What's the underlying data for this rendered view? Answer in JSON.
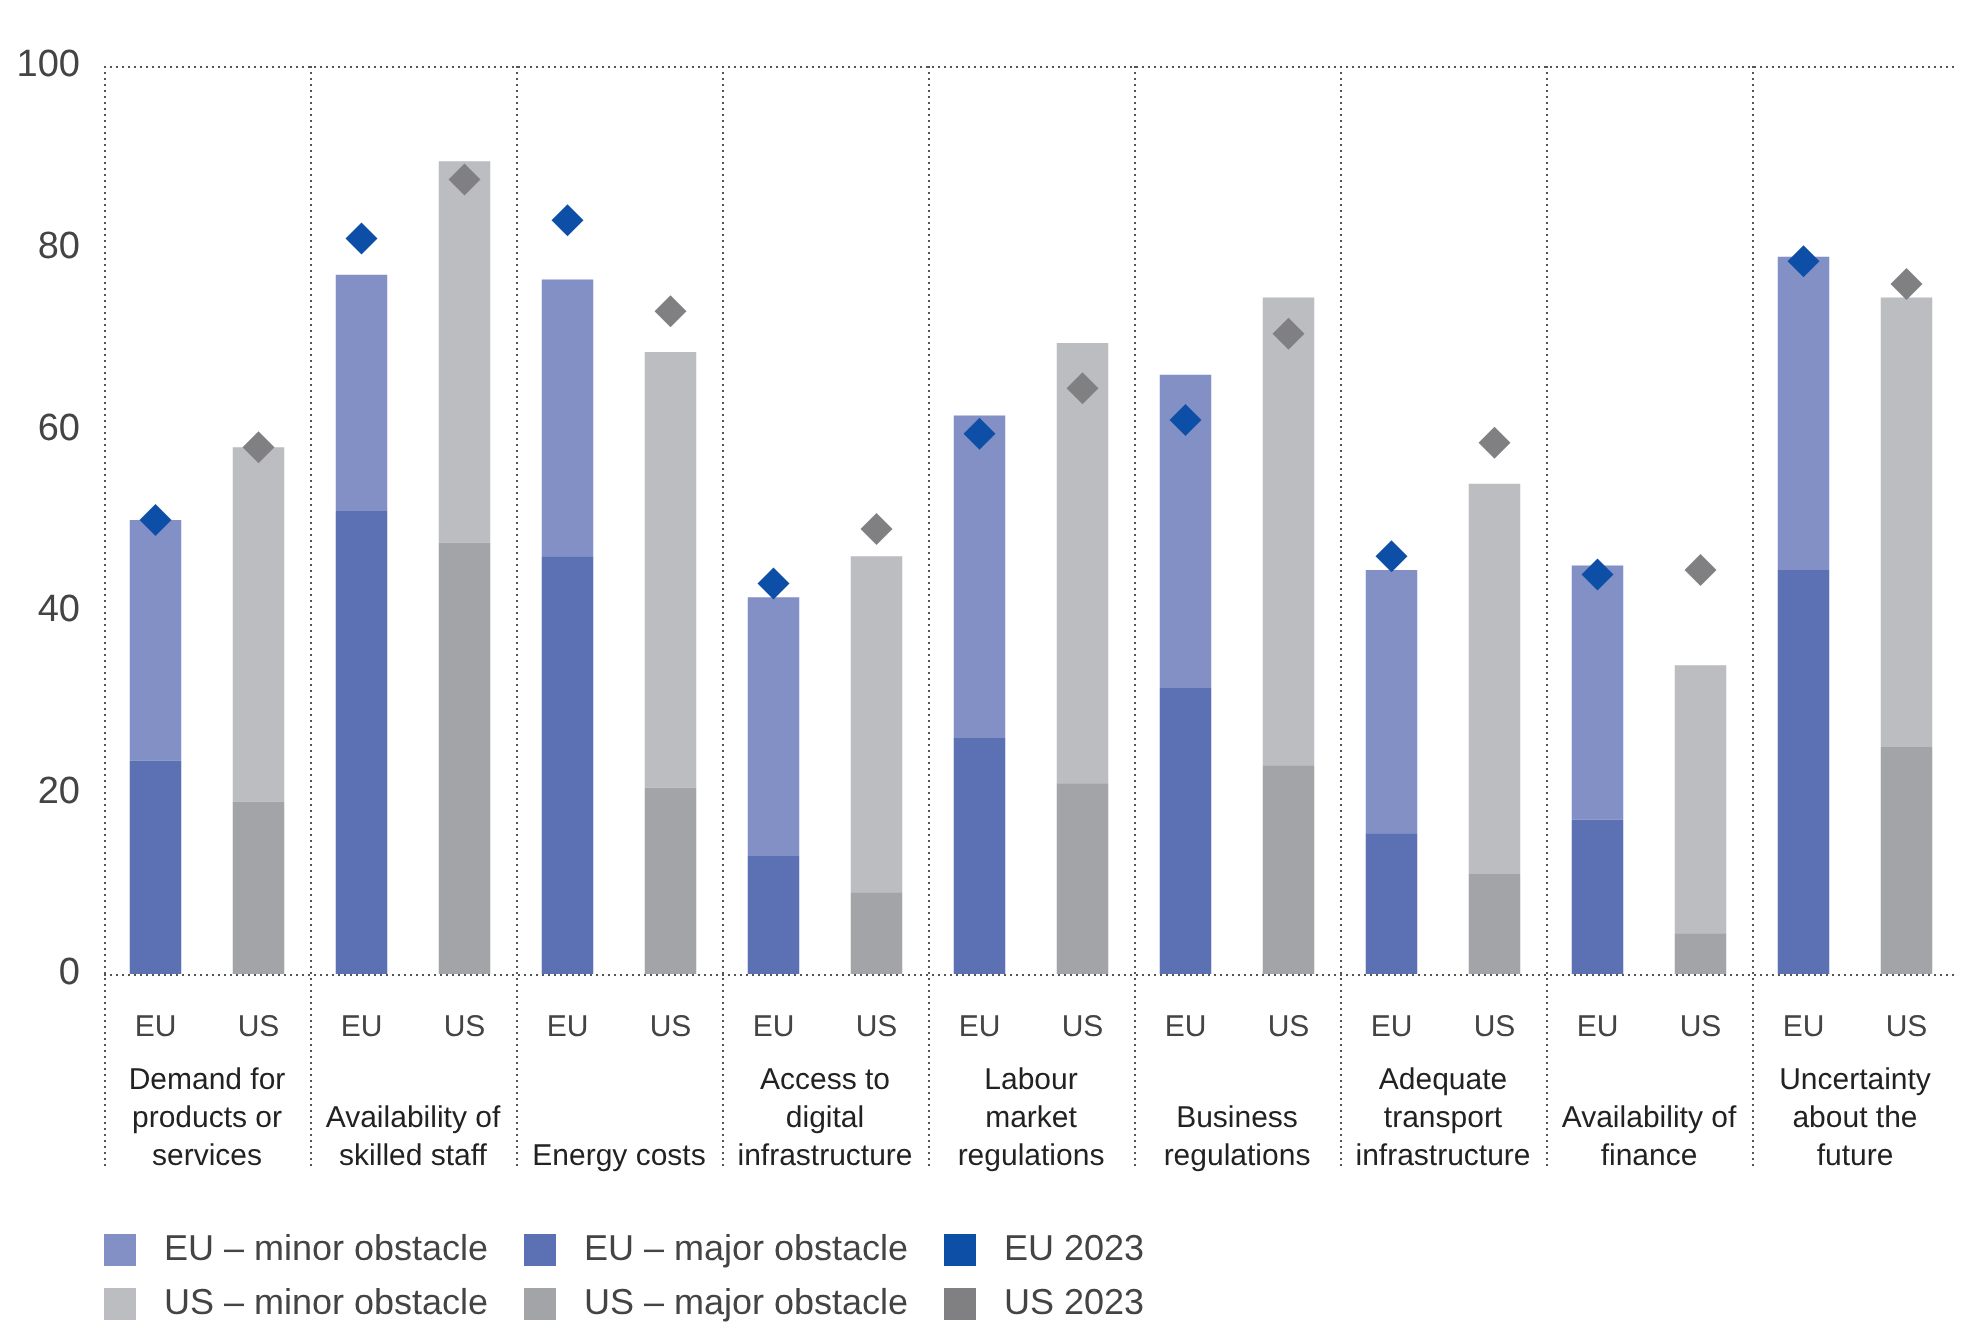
{
  "chart_data": {
    "type": "bar",
    "stacked": true,
    "categories": [
      "EU",
      "US",
      "EU",
      "US",
      "EU",
      "US",
      "EU",
      "US",
      "EU",
      "US",
      "EU",
      "US",
      "EU",
      "US",
      "EU",
      "US",
      "EU",
      "US"
    ],
    "series": [
      {
        "name": "EU – major obstacle",
        "color": "#5b71b4",
        "values": [
          23.5,
          null,
          51,
          null,
          46,
          null,
          13,
          null,
          26,
          null,
          31.5,
          null,
          15.5,
          null,
          17,
          null,
          44.5,
          null
        ]
      },
      {
        "name": "EU – minor obstacle",
        "color": "#8390c6",
        "values": [
          26.5,
          null,
          26,
          null,
          30.5,
          null,
          28.5,
          null,
          35.5,
          null,
          34.5,
          null,
          29,
          null,
          28,
          null,
          34.5,
          null
        ]
      },
      {
        "name": "US – major obstacle",
        "color": "#a3a4a8",
        "values": [
          null,
          19,
          null,
          47.5,
          null,
          20.5,
          null,
          9,
          null,
          21,
          null,
          23,
          null,
          11,
          null,
          4.5,
          null,
          25
        ]
      },
      {
        "name": "US – minor obstacle",
        "color": "#bcbdc1",
        "values": [
          null,
          39,
          null,
          42,
          null,
          48,
          null,
          37,
          null,
          48.5,
          null,
          51.5,
          null,
          43,
          null,
          29.5,
          null,
          49.5
        ]
      },
      {
        "name": "EU 2023",
        "type": "scatter",
        "color": "#0d4ea6",
        "values": [
          50,
          null,
          81,
          null,
          83,
          null,
          43,
          null,
          59.5,
          null,
          61,
          null,
          46,
          null,
          44,
          null,
          78.5,
          null
        ]
      },
      {
        "name": "US 2023",
        "type": "scatter",
        "color": "#808083",
        "values": [
          null,
          58,
          null,
          87.5,
          null,
          73,
          null,
          49,
          null,
          64.5,
          null,
          70.5,
          null,
          58.5,
          null,
          44.5,
          null,
          76
        ]
      }
    ],
    "ylim": [
      0,
      100
    ],
    "yticks": [
      0,
      20,
      40,
      60,
      80,
      100
    ],
    "legend": "bottom",
    "marker": "diamond",
    "annotations": [
      "Demand for products or services",
      "Availability of skilled staff",
      "Energy costs",
      "Access to digital infrastructure",
      "Labour market regulations",
      "Business regulations",
      "Adequate transport infrastructure",
      "Availability of finance",
      "Uncertainty about the future"
    ]
  }
}
